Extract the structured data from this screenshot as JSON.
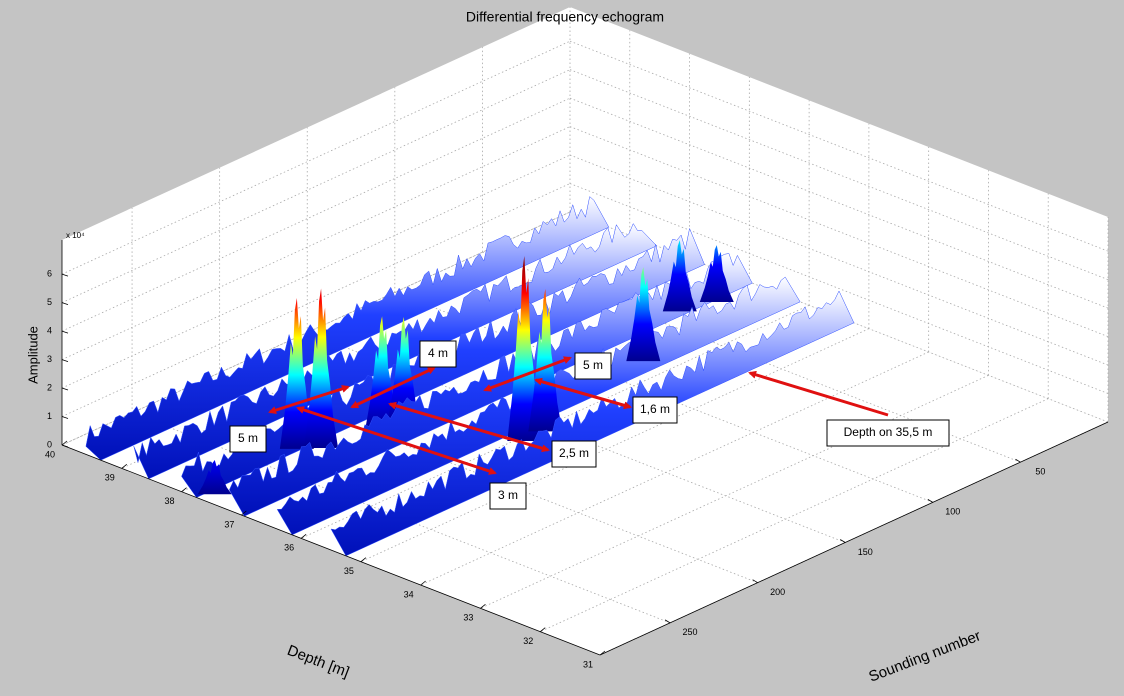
{
  "chart_data": {
    "type": "surface",
    "title": "Differential frequency echogram",
    "xlabel": "Sounding number",
    "ylabel": "Depth [m]",
    "zlabel": "Amplitude",
    "zlabel_exponent": "x 10⁴",
    "xlim": [
      0,
      290
    ],
    "xticks": [
      50,
      100,
      150,
      200,
      250
    ],
    "ylim": [
      31,
      40
    ],
    "yticks": [
      31,
      32,
      33,
      34,
      35,
      36,
      37,
      38,
      39,
      40
    ],
    "zlim": [
      0,
      7.2
    ],
    "zticks": [
      0,
      1,
      2,
      3,
      4,
      5,
      6
    ],
    "grid": true,
    "colormap": "jet",
    "peaks": {
      "sounding": [
        231,
        224,
        196,
        187,
        166,
        154,
        81,
        38,
        22,
        283
      ],
      "depth": [
        37.8,
        37.6,
        37.4,
        37.3,
        35.9,
        35.9,
        36.4,
        37.05,
        36.9,
        37.65
      ],
      "amplitude": [
        5.3,
        5.6,
        4.0,
        3.8,
        6.5,
        5.0,
        3.3,
        2.5,
        2.0,
        1.2
      ]
    },
    "ridges": {
      "depth": [
        39.6,
        38.8,
        38.0,
        37.2,
        36.4,
        35.5
      ],
      "amplitude": [
        0.8,
        0.8,
        0.9,
        0.9,
        0.9,
        0.8
      ]
    },
    "annotations": [
      "5 m",
      "4 m",
      "5 m",
      "1,6 m",
      "2,5 m",
      "3 m",
      "Depth on 35,5 m"
    ]
  }
}
